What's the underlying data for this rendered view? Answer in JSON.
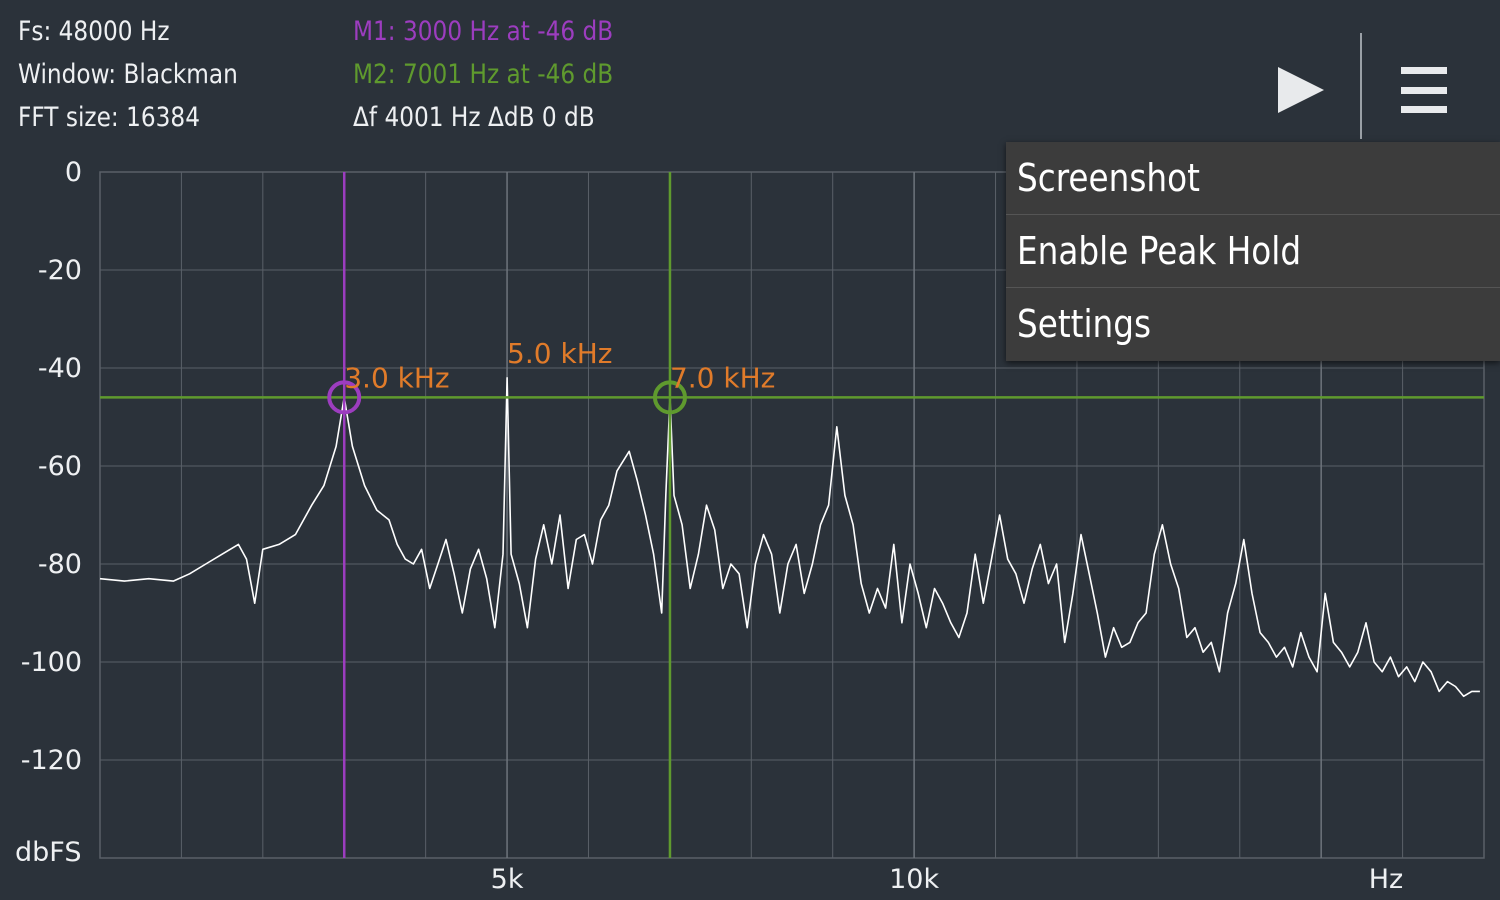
{
  "info": {
    "fs": "Fs: 48000 Hz",
    "window": "Window: Blackman",
    "fft_size": "FFT size: 16384",
    "marker1": "M1: 3000 Hz at -46 dB",
    "marker2": "M2: 7001 Hz at -46 dB",
    "delta": "Δf 4001 Hz ΔdB 0 dB"
  },
  "colors": {
    "background": "#2b323a",
    "grid": "#5a6068",
    "trace": "#ffffff",
    "marker1": "#9c3dbf",
    "marker2": "#5f9a2e",
    "peak_label": "#e07b2a",
    "text": "#eef0f2"
  },
  "toolbar": {
    "play_icon": "play-icon",
    "menu_icon": "hamburger-menu-icon"
  },
  "menu": {
    "items": [
      "Screenshot",
      "Enable Peak Hold",
      "Settings"
    ]
  },
  "chart_data": {
    "type": "line",
    "ylabel": "dbFS",
    "xlabel": "Hz",
    "ylim": [
      -140,
      0
    ],
    "xlim": [
      0,
      17000
    ],
    "yticks": [
      "0",
      "-20",
      "-40",
      "-60",
      "-80",
      "-100",
      "-120"
    ],
    "xticks": [
      {
        "value": 5000,
        "label": "5k"
      },
      {
        "value": 10000,
        "label": "10k"
      }
    ],
    "grid": true,
    "marker_level_db": -46,
    "markers": [
      {
        "name": "M1",
        "freq": 3000,
        "db": -46,
        "color": "#9c3dbf"
      },
      {
        "name": "M2",
        "freq": 7001,
        "db": -46,
        "color": "#5f9a2e"
      }
    ],
    "peak_labels": [
      {
        "freq": 3000,
        "db": -43,
        "label": "3.0  kHz"
      },
      {
        "freq": 5000,
        "db": -38,
        "label": "5.0  kHz"
      },
      {
        "freq": 7001,
        "db": -43,
        "label": "7.0  kHz"
      }
    ],
    "series": [
      {
        "points": [
          [
            0,
            -83
          ],
          [
            300,
            -83.5
          ],
          [
            600,
            -83
          ],
          [
            900,
            -83.5
          ],
          [
            1100,
            -82
          ],
          [
            1300,
            -80
          ],
          [
            1500,
            -78
          ],
          [
            1700,
            -76
          ],
          [
            1800,
            -79
          ],
          [
            1900,
            -88
          ],
          [
            2000,
            -77
          ],
          [
            2200,
            -76
          ],
          [
            2400,
            -74
          ],
          [
            2600,
            -68
          ],
          [
            2750,
            -64
          ],
          [
            2900,
            -56
          ],
          [
            3000,
            -46
          ],
          [
            3100,
            -56
          ],
          [
            3250,
            -64
          ],
          [
            3400,
            -69
          ],
          [
            3550,
            -71
          ],
          [
            3650,
            -76
          ],
          [
            3750,
            -79
          ],
          [
            3850,
            -80
          ],
          [
            3950,
            -77
          ],
          [
            4050,
            -85
          ],
          [
            4150,
            -80
          ],
          [
            4250,
            -75
          ],
          [
            4350,
            -82
          ],
          [
            4450,
            -90
          ],
          [
            4550,
            -81
          ],
          [
            4650,
            -77
          ],
          [
            4750,
            -83
          ],
          [
            4850,
            -93
          ],
          [
            4950,
            -78
          ],
          [
            5000,
            -42
          ],
          [
            5050,
            -78
          ],
          [
            5150,
            -84
          ],
          [
            5250,
            -93
          ],
          [
            5350,
            -79
          ],
          [
            5450,
            -72
          ],
          [
            5550,
            -80
          ],
          [
            5650,
            -70
          ],
          [
            5750,
            -85
          ],
          [
            5850,
            -75
          ],
          [
            5950,
            -74
          ],
          [
            6050,
            -80
          ],
          [
            6150,
            -71
          ],
          [
            6250,
            -68
          ],
          [
            6350,
            -61
          ],
          [
            6500,
            -57
          ],
          [
            6600,
            -63
          ],
          [
            6700,
            -70
          ],
          [
            6800,
            -78
          ],
          [
            6900,
            -90
          ],
          [
            6950,
            -66
          ],
          [
            7001,
            -46
          ],
          [
            7050,
            -66
          ],
          [
            7150,
            -72
          ],
          [
            7250,
            -85
          ],
          [
            7350,
            -78
          ],
          [
            7450,
            -68
          ],
          [
            7550,
            -73
          ],
          [
            7650,
            -85
          ],
          [
            7750,
            -80
          ],
          [
            7850,
            -82
          ],
          [
            7950,
            -93
          ],
          [
            8050,
            -80
          ],
          [
            8150,
            -74
          ],
          [
            8250,
            -78
          ],
          [
            8350,
            -90
          ],
          [
            8450,
            -80
          ],
          [
            8550,
            -76
          ],
          [
            8650,
            -86
          ],
          [
            8750,
            -80
          ],
          [
            8850,
            -72
          ],
          [
            8950,
            -68
          ],
          [
            9050,
            -52
          ],
          [
            9150,
            -66
          ],
          [
            9250,
            -72
          ],
          [
            9350,
            -84
          ],
          [
            9450,
            -90
          ],
          [
            9550,
            -85
          ],
          [
            9650,
            -89
          ],
          [
            9750,
            -76
          ],
          [
            9850,
            -92
          ],
          [
            9950,
            -80
          ],
          [
            10050,
            -86
          ],
          [
            10150,
            -93
          ],
          [
            10250,
            -85
          ],
          [
            10350,
            -88
          ],
          [
            10450,
            -92
          ],
          [
            10550,
            -95
          ],
          [
            10650,
            -90
          ],
          [
            10750,
            -78
          ],
          [
            10850,
            -88
          ],
          [
            10950,
            -79
          ],
          [
            11050,
            -70
          ],
          [
            11150,
            -79
          ],
          [
            11250,
            -82
          ],
          [
            11350,
            -88
          ],
          [
            11450,
            -81
          ],
          [
            11550,
            -76
          ],
          [
            11650,
            -84
          ],
          [
            11750,
            -80
          ],
          [
            11850,
            -96
          ],
          [
            11950,
            -86
          ],
          [
            12050,
            -74
          ],
          [
            12150,
            -82
          ],
          [
            12250,
            -90
          ],
          [
            12350,
            -99
          ],
          [
            12450,
            -93
          ],
          [
            12550,
            -97
          ],
          [
            12650,
            -96
          ],
          [
            12750,
            -92
          ],
          [
            12850,
            -90
          ],
          [
            12950,
            -78
          ],
          [
            13050,
            -72
          ],
          [
            13150,
            -80
          ],
          [
            13250,
            -85
          ],
          [
            13350,
            -95
          ],
          [
            13450,
            -93
          ],
          [
            13550,
            -98
          ],
          [
            13650,
            -96
          ],
          [
            13750,
            -102
          ],
          [
            13850,
            -90
          ],
          [
            13950,
            -84
          ],
          [
            14050,
            -75
          ],
          [
            14150,
            -86
          ],
          [
            14250,
            -94
          ],
          [
            14350,
            -96
          ],
          [
            14450,
            -99
          ],
          [
            14550,
            -97
          ],
          [
            14650,
            -101
          ],
          [
            14750,
            -94
          ],
          [
            14850,
            -99
          ],
          [
            14950,
            -102
          ],
          [
            15050,
            -86
          ],
          [
            15150,
            -96
          ],
          [
            15250,
            -98
          ],
          [
            15350,
            -101
          ],
          [
            15450,
            -98
          ],
          [
            15550,
            -92
          ],
          [
            15650,
            -100
          ],
          [
            15750,
            -102
          ],
          [
            15850,
            -99
          ],
          [
            15950,
            -103
          ],
          [
            16050,
            -101
          ],
          [
            16150,
            -104
          ],
          [
            16250,
            -100
          ],
          [
            16350,
            -102
          ],
          [
            16450,
            -106
          ],
          [
            16550,
            -104
          ],
          [
            16650,
            -105
          ],
          [
            16750,
            -107
          ],
          [
            16850,
            -106
          ],
          [
            16950,
            -106
          ]
        ]
      }
    ]
  }
}
